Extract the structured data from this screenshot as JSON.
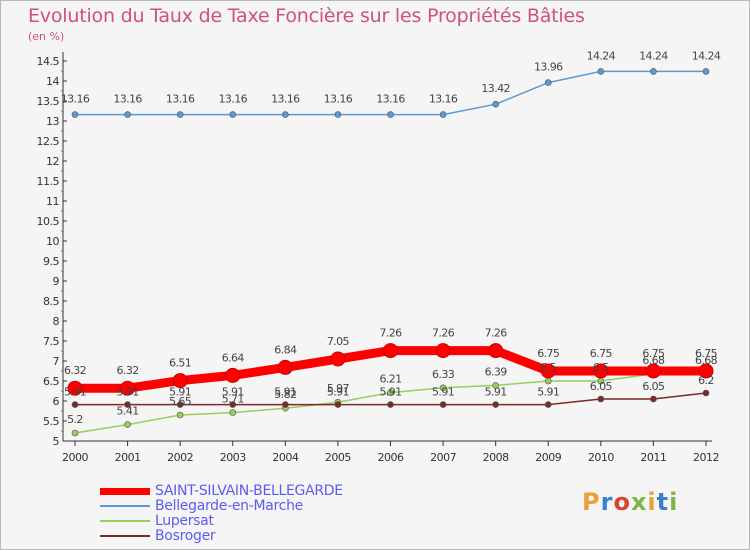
{
  "chart_data": {
    "type": "line",
    "title": "Evolution du Taux de Taxe Foncière sur les Propriétés Bâties",
    "unit_label": "(en %)",
    "x": [
      "2000",
      "2001",
      "2002",
      "2003",
      "2004",
      "2005",
      "2006",
      "2007",
      "2008",
      "2009",
      "2010",
      "2011",
      "2012"
    ],
    "ylim": [
      5,
      14.5
    ],
    "yticks": [
      "5",
      "5.5",
      "6",
      "6.5",
      "7",
      "7.5",
      "8",
      "8.5",
      "9",
      "9.5",
      "10",
      "10.5",
      "11",
      "11.5",
      "12",
      "12.5",
      "13",
      "13.5",
      "14",
      "14.5"
    ],
    "grid": false,
    "legend_position": "bottom-left",
    "series": [
      {
        "name": "Bellegarde-en-Marche",
        "color": "#5b9bd5",
        "values": [
          13.16,
          13.16,
          13.16,
          13.16,
          13.16,
          13.16,
          13.16,
          13.16,
          13.42,
          13.96,
          14.24,
          14.24,
          14.24
        ]
      },
      {
        "name": "Lupersat",
        "color": "#9acd5a",
        "values": [
          5.2,
          5.41,
          5.65,
          5.71,
          5.82,
          5.97,
          6.21,
          6.33,
          6.39,
          6.5,
          6.5,
          6.68,
          6.68
        ]
      },
      {
        "name": "Bosroger",
        "color": "#7b2a2a",
        "values": [
          5.91,
          5.91,
          5.91,
          5.91,
          5.91,
          5.91,
          5.91,
          5.91,
          5.91,
          5.91,
          6.05,
          6.05,
          6.2
        ]
      },
      {
        "name": "SAINT-SILVAIN-BELLEGARDE",
        "color": "#ff0000",
        "values": [
          6.32,
          6.32,
          6.51,
          6.64,
          6.84,
          7.05,
          7.26,
          7.26,
          7.26,
          6.75,
          6.75,
          6.75,
          6.75
        ]
      }
    ]
  },
  "legend": {
    "items": [
      {
        "name": "SAINT-SILVAIN-BELLEGARDE",
        "color": "#ff0000"
      },
      {
        "name": "Bellegarde-en-Marche",
        "color": "#5b9bd5"
      },
      {
        "name": "Lupersat",
        "color": "#9acd5a"
      },
      {
        "name": "Bosroger",
        "color": "#7b2a2a"
      }
    ]
  },
  "logo": {
    "text": "Proxiti",
    "colors": [
      "#e8a23a",
      "#3a7fd0",
      "#d9472b",
      "#7ab648",
      "#e8a23a",
      "#3a7fd0",
      "#7ab648"
    ]
  }
}
